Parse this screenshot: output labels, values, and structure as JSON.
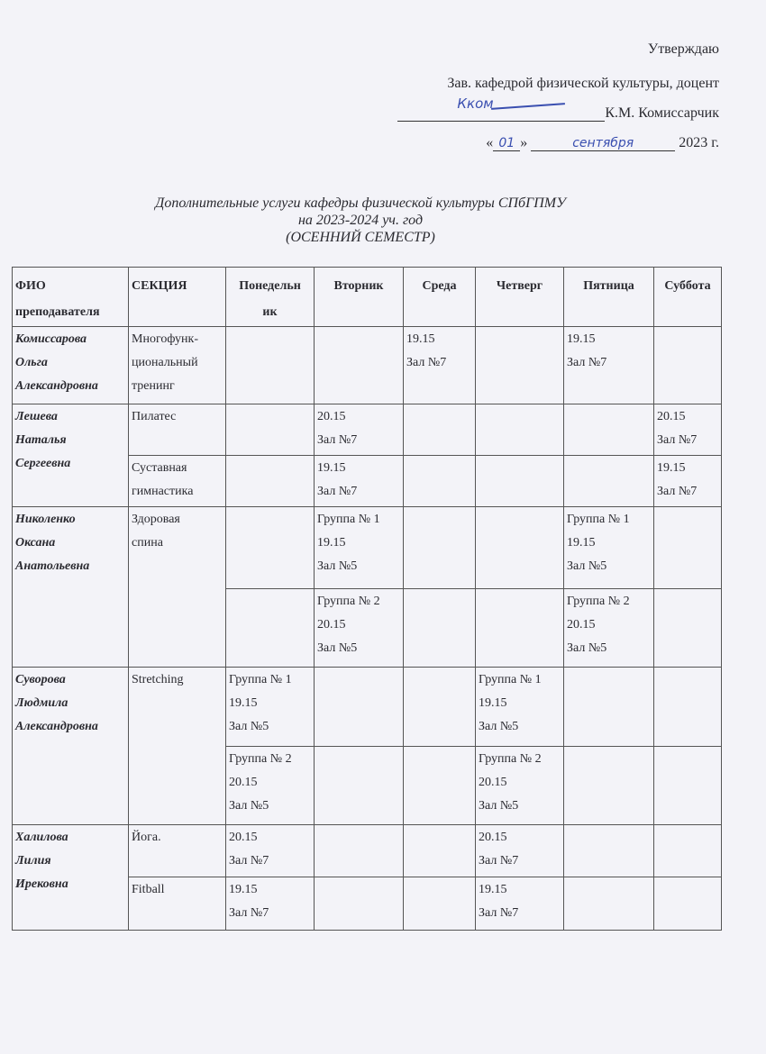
{
  "approval": {
    "approve": "Утверждаю",
    "position": "Зав. кафедрой физической культуры, доцент",
    "name": "К.М. Комиссарчик",
    "signature": "Кком",
    "day": "01",
    "month": "сентября",
    "year": "2023 г."
  },
  "title": {
    "line1": "Дополнительные услуги кафедры физической культуры СПбГПМУ",
    "line2": "на 2023-2024 уч. год",
    "line3": "(ОСЕННИЙ СЕМЕСТР)"
  },
  "table": {
    "headers": [
      "ФИО преподавателя",
      "СЕКЦИЯ",
      "Понедельн ик",
      "Вторник",
      "Среда",
      "Четверг",
      "Пятница",
      "Суббота"
    ],
    "rows": [
      {
        "teacher": [
          "Комиссарова",
          "Ольга",
          "Александровна"
        ],
        "teacher_rows": 1,
        "section": [
          "Многофунк-",
          "циональный",
          "тренинг"
        ],
        "section_rows": 1,
        "days": [
          [],
          [],
          [
            "19.15",
            "Зал №7"
          ],
          [],
          [
            "19.15",
            "Зал №7"
          ],
          []
        ]
      },
      {
        "teacher": [
          "Лешева",
          "Наталья",
          "Сергеевна"
        ],
        "teacher_rows": 2,
        "section": [
          "Пилатес"
        ],
        "section_rows": 1,
        "days": [
          [],
          [
            "20.15",
            "Зал №7"
          ],
          [],
          [],
          [],
          [
            "20.15",
            "Зал №7"
          ]
        ]
      },
      {
        "section": [
          "Суставная",
          "гимнастика"
        ],
        "section_rows": 1,
        "days": [
          [],
          [
            "19.15",
            "Зал №7"
          ],
          [],
          [],
          [],
          [
            "19.15",
            "Зал №7"
          ]
        ]
      },
      {
        "teacher": [
          "Николенко",
          "Оксана",
          "Анатольевна"
        ],
        "teacher_rows": 2,
        "section": [
          "Здоровая",
          "спина"
        ],
        "section_rows": 2,
        "days": [
          [],
          [
            "Группа № 1",
            "19.15",
            "Зал №5"
          ],
          [],
          [],
          [
            "Группа № 1",
            "19.15",
            "Зал №5"
          ],
          []
        ]
      },
      {
        "days": [
          [],
          [
            "Группа № 2",
            "20.15",
            "Зал №5"
          ],
          [],
          [],
          [
            "Группа № 2",
            "20.15",
            "Зал №5"
          ],
          []
        ]
      },
      {
        "teacher": [
          "Суворова",
          "Людмила",
          "Александровна"
        ],
        "teacher_rows": 2,
        "section": [
          "Stretching"
        ],
        "section_rows": 2,
        "days": [
          [
            "Группа № 1",
            "19.15",
            "Зал №5"
          ],
          [],
          [],
          [
            "Группа № 1",
            "19.15",
            "Зал №5"
          ],
          [],
          []
        ]
      },
      {
        "days": [
          [
            "Группа № 2",
            "20.15",
            "Зал №5"
          ],
          [],
          [],
          [
            "Группа № 2",
            "20.15",
            "Зал №5"
          ],
          [],
          []
        ]
      },
      {
        "teacher": [
          "Халилова",
          "Лилия",
          "Ирековна"
        ],
        "teacher_rows": 2,
        "section": [
          "Йога."
        ],
        "section_rows": 1,
        "days": [
          [
            "20.15",
            "Зал №7"
          ],
          [],
          [],
          [
            "20.15",
            "Зал №7"
          ],
          [],
          []
        ]
      },
      {
        "section": [
          "Fitball"
        ],
        "section_rows": 1,
        "days": [
          [
            "19.15",
            "Зал №7"
          ],
          [],
          [],
          [
            "19.15",
            "Зал №7"
          ],
          [],
          []
        ]
      }
    ]
  }
}
